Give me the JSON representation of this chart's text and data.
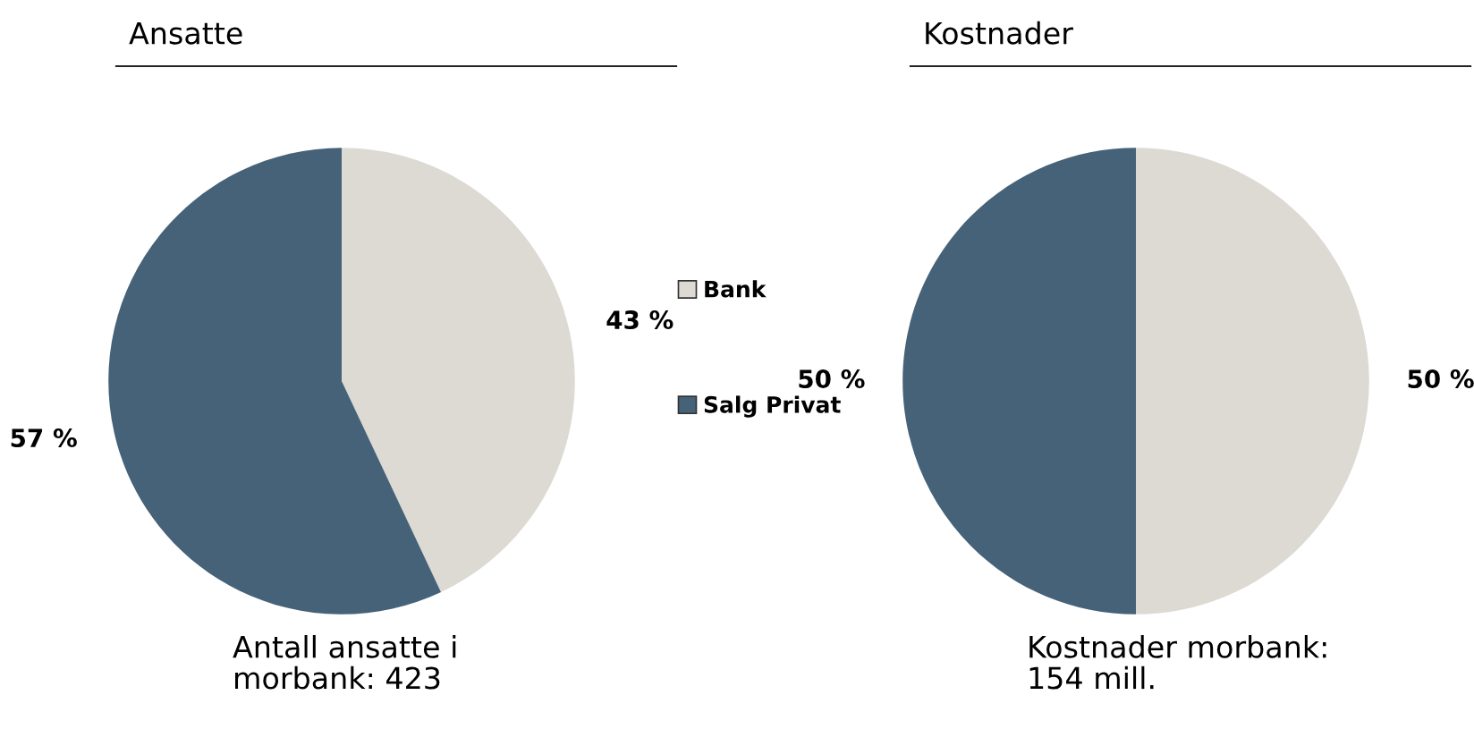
{
  "chart_data": [
    {
      "type": "pie",
      "title": "Ansatte",
      "categories": [
        "Bank",
        "Salg Privat"
      ],
      "values": [
        43,
        57
      ],
      "colors": [
        "#dcdad3",
        "#466279"
      ],
      "value_labels": [
        "43 %",
        "57 %"
      ],
      "legend": "right",
      "annotations": [
        "Antall ansatte i\nmorbank: 423"
      ]
    },
    {
      "type": "pie",
      "title": "Kostnader",
      "categories": [
        null,
        null
      ],
      "values": [
        50,
        50
      ],
      "colors": [
        "#dcdad3",
        "#466279"
      ],
      "value_labels": [
        "50 %",
        "50 %"
      ],
      "legend": false,
      "annotations": [
        "Kostnader morbank:\n154 mill."
      ]
    }
  ]
}
